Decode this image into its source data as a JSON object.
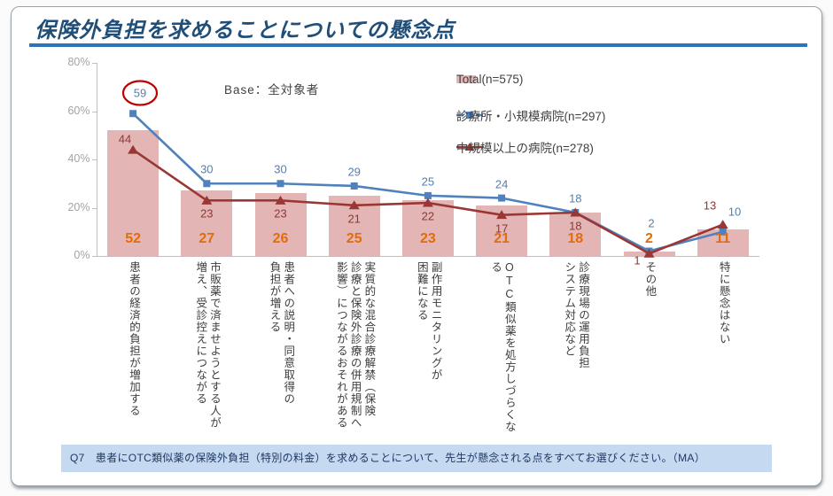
{
  "page": {
    "title": "保険外負担を求めることについての懸念点",
    "base_note": "Base：全対象者",
    "question": "Q7　患者にOTC類似薬の保険外負担（特別の料金）を求めることについて、先生が懸念される点をすべてお選びください。（MA）"
  },
  "colors": {
    "title": "#1f4e79",
    "title_rule": "#2e75b6",
    "axis": "#bfbfbf",
    "axis_label": "#a3a3a3",
    "category_label": "#3d3d3d",
    "annotation_circle": "#c00000",
    "question_bg": "#c5d9f1",
    "question_text": "#1f3864",
    "legend_text": "#404040"
  },
  "chart_data": {
    "type": "combo (bar + 2 lines)",
    "title": "",
    "ylim": [
      0,
      80
    ],
    "grid": "off",
    "legend_position": "top-right",
    "yticks": [
      {
        "value": 0,
        "label": "0%"
      },
      {
        "value": 20,
        "label": "20%"
      },
      {
        "value": 40,
        "label": "40%"
      },
      {
        "value": 60,
        "label": "60%"
      },
      {
        "value": 80,
        "label": "80%"
      }
    ],
    "categories": [
      [
        "患者の経済的負担が増加する"
      ],
      [
        "市販薬で済ませようとする人が",
        "増え、受診控えにつながる"
      ],
      [
        "患者への説明・同意取得の",
        "負担が増える"
      ],
      [
        "実質的な混合診療解禁（保険",
        "診療と保険外診療の併用規制へ",
        "影響）につながるおそれがある"
      ],
      [
        "副作用モニタリングが",
        "困難になる"
      ],
      [
        "OTC類似薬を処方しづらくなる"
      ],
      [
        "診療現場の運用負担",
        "システム対応など"
      ],
      [
        "その他"
      ],
      [
        "特に懸念はない"
      ]
    ],
    "series": [
      {
        "name": "Total(n=575)",
        "type": "bar",
        "color": "#e3b6b5",
        "label_color": "#e36c09",
        "values": [
          52,
          27,
          26,
          25,
          23,
          21,
          18,
          2,
          11
        ]
      },
      {
        "name": "診療所・小規模病院(n=297)",
        "type": "line",
        "marker": "square",
        "color": "#4f81bd",
        "label_color": "#5a7da6",
        "values": [
          59,
          30,
          30,
          29,
          25,
          24,
          18,
          2,
          10
        ]
      },
      {
        "name": "中規模以上の病院(n=278)",
        "type": "line",
        "marker": "triangle",
        "color": "#9a3734",
        "label_color": "#8a3a36",
        "values": [
          44,
          23,
          23,
          21,
          22,
          17,
          18,
          1,
          13
        ]
      }
    ],
    "annotation": {
      "shape": "ellipse",
      "series_index": 1,
      "category_index": 0,
      "value": 59,
      "color": "#c00000"
    }
  }
}
